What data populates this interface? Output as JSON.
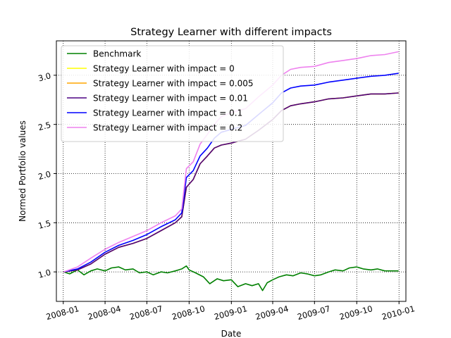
{
  "chart_data": {
    "type": "line",
    "title": "Strategy Learner with different impacts",
    "xlabel": "Date",
    "ylabel": "Normed Portfolio values",
    "xlim": [
      "2007-12-17",
      "2010-01-16"
    ],
    "ylim": [
      0.7,
      3.35
    ],
    "x_ticks": [
      "2008-01",
      "2008-04",
      "2008-07",
      "2008-10",
      "2009-01",
      "2009-04",
      "2009-07",
      "2009-10",
      "2010-01"
    ],
    "y_ticks": [
      1.0,
      1.5,
      2.0,
      2.5,
      3.0
    ],
    "y_tick_labels": [
      "1.0",
      "1.5",
      "2.0",
      "2.5",
      "3.0"
    ],
    "grid": true,
    "grid_style": "dotted",
    "legend_placement": "top-left",
    "series": [
      {
        "name": "Benchmark",
        "color": "#008000",
        "points": [
          [
            "2008-01-02",
            1.0
          ],
          [
            "2008-01-15",
            0.98
          ],
          [
            "2008-02-01",
            1.02
          ],
          [
            "2008-02-15",
            0.97
          ],
          [
            "2008-03-01",
            1.01
          ],
          [
            "2008-03-15",
            1.03
          ],
          [
            "2008-04-01",
            1.01
          ],
          [
            "2008-04-15",
            1.04
          ],
          [
            "2008-05-01",
            1.05
          ],
          [
            "2008-05-15",
            1.02
          ],
          [
            "2008-06-01",
            1.03
          ],
          [
            "2008-06-15",
            0.99
          ],
          [
            "2008-07-01",
            1.0
          ],
          [
            "2008-07-15",
            0.97
          ],
          [
            "2008-08-01",
            1.0
          ],
          [
            "2008-08-15",
            0.99
          ],
          [
            "2008-09-01",
            1.01
          ],
          [
            "2008-09-15",
            1.03
          ],
          [
            "2008-09-25",
            1.06
          ],
          [
            "2008-10-01",
            1.02
          ],
          [
            "2008-10-15",
            0.99
          ],
          [
            "2008-11-01",
            0.95
          ],
          [
            "2008-11-15",
            0.88
          ],
          [
            "2008-12-01",
            0.93
          ],
          [
            "2008-12-15",
            0.91
          ],
          [
            "2009-01-01",
            0.92
          ],
          [
            "2009-01-15",
            0.85
          ],
          [
            "2009-02-01",
            0.88
          ],
          [
            "2009-02-15",
            0.86
          ],
          [
            "2009-03-01",
            0.88
          ],
          [
            "2009-03-10",
            0.81
          ],
          [
            "2009-03-20",
            0.89
          ],
          [
            "2009-04-01",
            0.92
          ],
          [
            "2009-04-15",
            0.95
          ],
          [
            "2009-05-01",
            0.97
          ],
          [
            "2009-05-15",
            0.96
          ],
          [
            "2009-06-01",
            0.99
          ],
          [
            "2009-06-15",
            0.98
          ],
          [
            "2009-07-01",
            0.96
          ],
          [
            "2009-07-15",
            0.97
          ],
          [
            "2009-08-01",
            1.0
          ],
          [
            "2009-08-15",
            1.02
          ],
          [
            "2009-09-01",
            1.01
          ],
          [
            "2009-09-15",
            1.04
          ],
          [
            "2009-10-01",
            1.05
          ],
          [
            "2009-10-15",
            1.03
          ],
          [
            "2009-11-01",
            1.02
          ],
          [
            "2009-11-15",
            1.03
          ],
          [
            "2009-12-01",
            1.01
          ],
          [
            "2009-12-31",
            1.01
          ]
        ]
      },
      {
        "name": "Strategy Learner with impact = 0",
        "color": "#ffff00",
        "points": [
          [
            "2008-01-02",
            1.0
          ],
          [
            "2008-02-01",
            1.02
          ],
          [
            "2008-03-01",
            1.08
          ],
          [
            "2008-04-01",
            1.18
          ],
          [
            "2008-05-01",
            1.25
          ],
          [
            "2008-06-01",
            1.29
          ],
          [
            "2008-07-01",
            1.34
          ],
          [
            "2008-08-01",
            1.42
          ],
          [
            "2008-09-01",
            1.5
          ],
          [
            "2008-09-15",
            1.56
          ],
          [
            "2008-09-25",
            1.86
          ],
          [
            "2008-10-10",
            1.94
          ],
          [
            "2008-10-25",
            2.1
          ],
          [
            "2008-11-10",
            2.18
          ],
          [
            "2008-11-25",
            2.26
          ],
          [
            "2008-12-10",
            2.29
          ],
          [
            "2009-01-01",
            2.31
          ],
          [
            "2009-02-01",
            2.35
          ],
          [
            "2009-03-01",
            2.44
          ],
          [
            "2009-04-01",
            2.55
          ],
          [
            "2009-04-20",
            2.64
          ],
          [
            "2009-05-10",
            2.69
          ],
          [
            "2009-06-01",
            2.71
          ],
          [
            "2009-07-01",
            2.73
          ],
          [
            "2009-08-01",
            2.76
          ],
          [
            "2009-09-01",
            2.77
          ],
          [
            "2009-10-01",
            2.79
          ],
          [
            "2009-11-01",
            2.81
          ],
          [
            "2009-12-01",
            2.81
          ],
          [
            "2009-12-31",
            2.82
          ]
        ]
      },
      {
        "name": "Strategy Learner with impact = 0.005",
        "color": "#ffa500",
        "points": [
          [
            "2008-01-02",
            1.0
          ],
          [
            "2008-02-01",
            1.02
          ],
          [
            "2008-03-01",
            1.08
          ],
          [
            "2008-04-01",
            1.18
          ],
          [
            "2008-05-01",
            1.25
          ],
          [
            "2008-06-01",
            1.29
          ],
          [
            "2008-07-01",
            1.34
          ],
          [
            "2008-08-01",
            1.42
          ],
          [
            "2008-09-01",
            1.5
          ],
          [
            "2008-09-15",
            1.56
          ],
          [
            "2008-09-25",
            1.86
          ],
          [
            "2008-10-10",
            1.94
          ],
          [
            "2008-10-25",
            2.1
          ],
          [
            "2008-11-10",
            2.18
          ],
          [
            "2008-11-25",
            2.26
          ],
          [
            "2008-12-10",
            2.29
          ],
          [
            "2009-01-01",
            2.31
          ],
          [
            "2009-02-01",
            2.35
          ],
          [
            "2009-03-01",
            2.44
          ],
          [
            "2009-04-01",
            2.55
          ],
          [
            "2009-04-20",
            2.64
          ],
          [
            "2009-05-10",
            2.69
          ],
          [
            "2009-06-01",
            2.71
          ],
          [
            "2009-07-01",
            2.73
          ],
          [
            "2009-08-01",
            2.76
          ],
          [
            "2009-09-01",
            2.77
          ],
          [
            "2009-10-01",
            2.79
          ],
          [
            "2009-11-01",
            2.81
          ],
          [
            "2009-12-01",
            2.81
          ],
          [
            "2009-12-31",
            2.82
          ]
        ]
      },
      {
        "name": "Strategy Learner with impact = 0.01",
        "color": "#4b0082",
        "points": [
          [
            "2008-01-02",
            1.0
          ],
          [
            "2008-02-01",
            1.02
          ],
          [
            "2008-03-01",
            1.08
          ],
          [
            "2008-04-01",
            1.18
          ],
          [
            "2008-05-01",
            1.25
          ],
          [
            "2008-06-01",
            1.29
          ],
          [
            "2008-07-01",
            1.34
          ],
          [
            "2008-08-01",
            1.42
          ],
          [
            "2008-09-01",
            1.5
          ],
          [
            "2008-09-15",
            1.56
          ],
          [
            "2008-09-25",
            1.86
          ],
          [
            "2008-10-10",
            1.94
          ],
          [
            "2008-10-25",
            2.1
          ],
          [
            "2008-11-10",
            2.18
          ],
          [
            "2008-11-25",
            2.26
          ],
          [
            "2008-12-10",
            2.29
          ],
          [
            "2009-01-01",
            2.31
          ],
          [
            "2009-02-01",
            2.35
          ],
          [
            "2009-03-01",
            2.44
          ],
          [
            "2009-04-01",
            2.55
          ],
          [
            "2009-04-20",
            2.64
          ],
          [
            "2009-05-10",
            2.69
          ],
          [
            "2009-06-01",
            2.71
          ],
          [
            "2009-07-01",
            2.73
          ],
          [
            "2009-08-01",
            2.76
          ],
          [
            "2009-09-01",
            2.77
          ],
          [
            "2009-10-01",
            2.79
          ],
          [
            "2009-11-01",
            2.81
          ],
          [
            "2009-12-01",
            2.81
          ],
          [
            "2009-12-31",
            2.82
          ]
        ]
      },
      {
        "name": "Strategy Learner with impact = 0.1",
        "color": "#0000ff",
        "points": [
          [
            "2008-01-02",
            1.0
          ],
          [
            "2008-02-01",
            1.03
          ],
          [
            "2008-03-01",
            1.1
          ],
          [
            "2008-04-01",
            1.2
          ],
          [
            "2008-05-01",
            1.27
          ],
          [
            "2008-06-01",
            1.32
          ],
          [
            "2008-07-01",
            1.38
          ],
          [
            "2008-08-01",
            1.46
          ],
          [
            "2008-09-01",
            1.53
          ],
          [
            "2008-09-15",
            1.6
          ],
          [
            "2008-09-25",
            1.96
          ],
          [
            "2008-10-10",
            2.03
          ],
          [
            "2008-10-25",
            2.18
          ],
          [
            "2008-11-10",
            2.26
          ],
          [
            "2008-11-25",
            2.36
          ],
          [
            "2008-12-10",
            2.42
          ],
          [
            "2009-01-01",
            2.45
          ],
          [
            "2009-02-01",
            2.49
          ],
          [
            "2009-03-01",
            2.6
          ],
          [
            "2009-04-01",
            2.72
          ],
          [
            "2009-04-20",
            2.82
          ],
          [
            "2009-05-10",
            2.87
          ],
          [
            "2009-06-01",
            2.89
          ],
          [
            "2009-07-01",
            2.9
          ],
          [
            "2009-08-01",
            2.93
          ],
          [
            "2009-09-01",
            2.95
          ],
          [
            "2009-10-01",
            2.97
          ],
          [
            "2009-11-01",
            2.99
          ],
          [
            "2009-12-01",
            3.0
          ],
          [
            "2009-12-31",
            3.02
          ]
        ]
      },
      {
        "name": "Strategy Learner with impact = 0.2",
        "color": "#ee82ee",
        "points": [
          [
            "2008-01-02",
            1.0
          ],
          [
            "2008-02-01",
            1.05
          ],
          [
            "2008-03-01",
            1.14
          ],
          [
            "2008-04-01",
            1.23
          ],
          [
            "2008-05-01",
            1.3
          ],
          [
            "2008-06-01",
            1.36
          ],
          [
            "2008-07-01",
            1.42
          ],
          [
            "2008-08-01",
            1.5
          ],
          [
            "2008-09-01",
            1.57
          ],
          [
            "2008-09-15",
            1.64
          ],
          [
            "2008-09-25",
            2.05
          ],
          [
            "2008-10-10",
            2.12
          ],
          [
            "2008-10-25",
            2.3
          ],
          [
            "2008-11-10",
            2.4
          ],
          [
            "2008-11-25",
            2.5
          ],
          [
            "2008-12-10",
            2.58
          ],
          [
            "2009-01-01",
            2.62
          ],
          [
            "2009-02-01",
            2.66
          ],
          [
            "2009-03-01",
            2.78
          ],
          [
            "2009-04-01",
            2.9
          ],
          [
            "2009-04-20",
            3.0
          ],
          [
            "2009-05-10",
            3.06
          ],
          [
            "2009-06-01",
            3.08
          ],
          [
            "2009-07-01",
            3.09
          ],
          [
            "2009-08-01",
            3.13
          ],
          [
            "2009-09-01",
            3.15
          ],
          [
            "2009-10-01",
            3.17
          ],
          [
            "2009-11-01",
            3.2
          ],
          [
            "2009-12-01",
            3.21
          ],
          [
            "2009-12-31",
            3.24
          ]
        ]
      }
    ]
  }
}
